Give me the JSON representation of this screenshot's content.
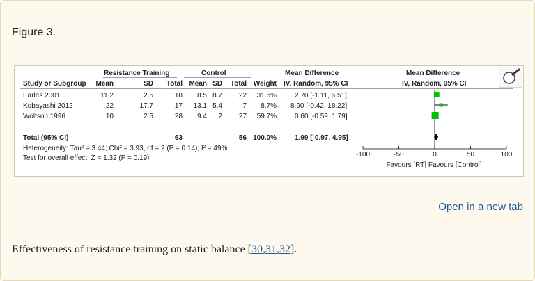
{
  "figure": {
    "title": "Figure 3.",
    "open_link": "Open in a new tab",
    "caption": {
      "text_before": "Effectiveness of resistance training on static balance [",
      "refs": [
        "30",
        "31",
        "32"
      ],
      "sep": ",",
      "text_after": "]."
    }
  },
  "table": {
    "group_headers": {
      "rt": "Resistance Training",
      "control": "Control",
      "md_left": "Mean Difference",
      "md_right": "Mean Difference"
    },
    "columns": [
      "Study or Subgroup",
      "Mean",
      "SD",
      "Total",
      "Mean",
      "SD",
      "Total",
      "Weight",
      "IV, Random, 95% CI",
      "IV, Random, 95% CI"
    ],
    "rows": [
      {
        "study": "Earles 2001",
        "rt_mean": "11.2",
        "rt_sd": "2.5",
        "rt_total": "18",
        "c_mean": "8.5",
        "c_sd": "8.7",
        "c_total": "22",
        "weight": "31.5%",
        "ci": "2.70 [-1.11, 6.51]"
      },
      {
        "study": "Kobayashi 2012",
        "rt_mean": "22",
        "rt_sd": "17.7",
        "rt_total": "17",
        "c_mean": "13.1",
        "c_sd": "5.4",
        "c_total": "7",
        "weight": "8.7%",
        "ci": "8.90 [-0.42, 18.22]"
      },
      {
        "study": "Wolfson 1996",
        "rt_mean": "10",
        "rt_sd": "2.5",
        "rt_total": "28",
        "c_mean": "9.4",
        "c_sd": "2",
        "c_total": "27",
        "weight": "59.7%",
        "ci": "0.60 [-0.59, 1.79]"
      }
    ],
    "total": {
      "label": "Total (95% CI)",
      "rt_total": "63",
      "c_total": "56",
      "weight": "100.0%",
      "ci": "1.99 [-0.97, 4.95]"
    },
    "heterogeneity": "Heterogeneity: Tau² = 3.44; Chi² = 3.93, df = 2 (P = 0.14); I² = 49%",
    "overall_effect": "Test for overall effect: Z = 1.32 (P = 0.19)"
  },
  "chart_data": {
    "type": "scatter",
    "subtype": "forest-plot",
    "x_range": [
      -100,
      100
    ],
    "ticks": [
      "-100",
      "-50",
      "0",
      "50",
      "100"
    ],
    "tick_values": [
      -100,
      -50,
      0,
      50,
      100
    ],
    "xlabel": "Favours [RT]   Favours [Control]",
    "studies": [
      {
        "label": "Earles 2001",
        "md": 2.7,
        "lo": -1.11,
        "hi": 6.51,
        "weight": 31.5
      },
      {
        "label": "Kobayashi 2012",
        "md": 8.9,
        "lo": -0.42,
        "hi": 18.22,
        "weight": 8.7
      },
      {
        "label": "Wolfson 1996",
        "md": 0.6,
        "lo": -0.59,
        "hi": 1.79,
        "weight": 59.7
      }
    ],
    "pooled": {
      "md": 1.99,
      "lo": -0.97,
      "hi": 4.95
    },
    "colors": {
      "marker": "#00c000",
      "line": "#000000"
    }
  }
}
